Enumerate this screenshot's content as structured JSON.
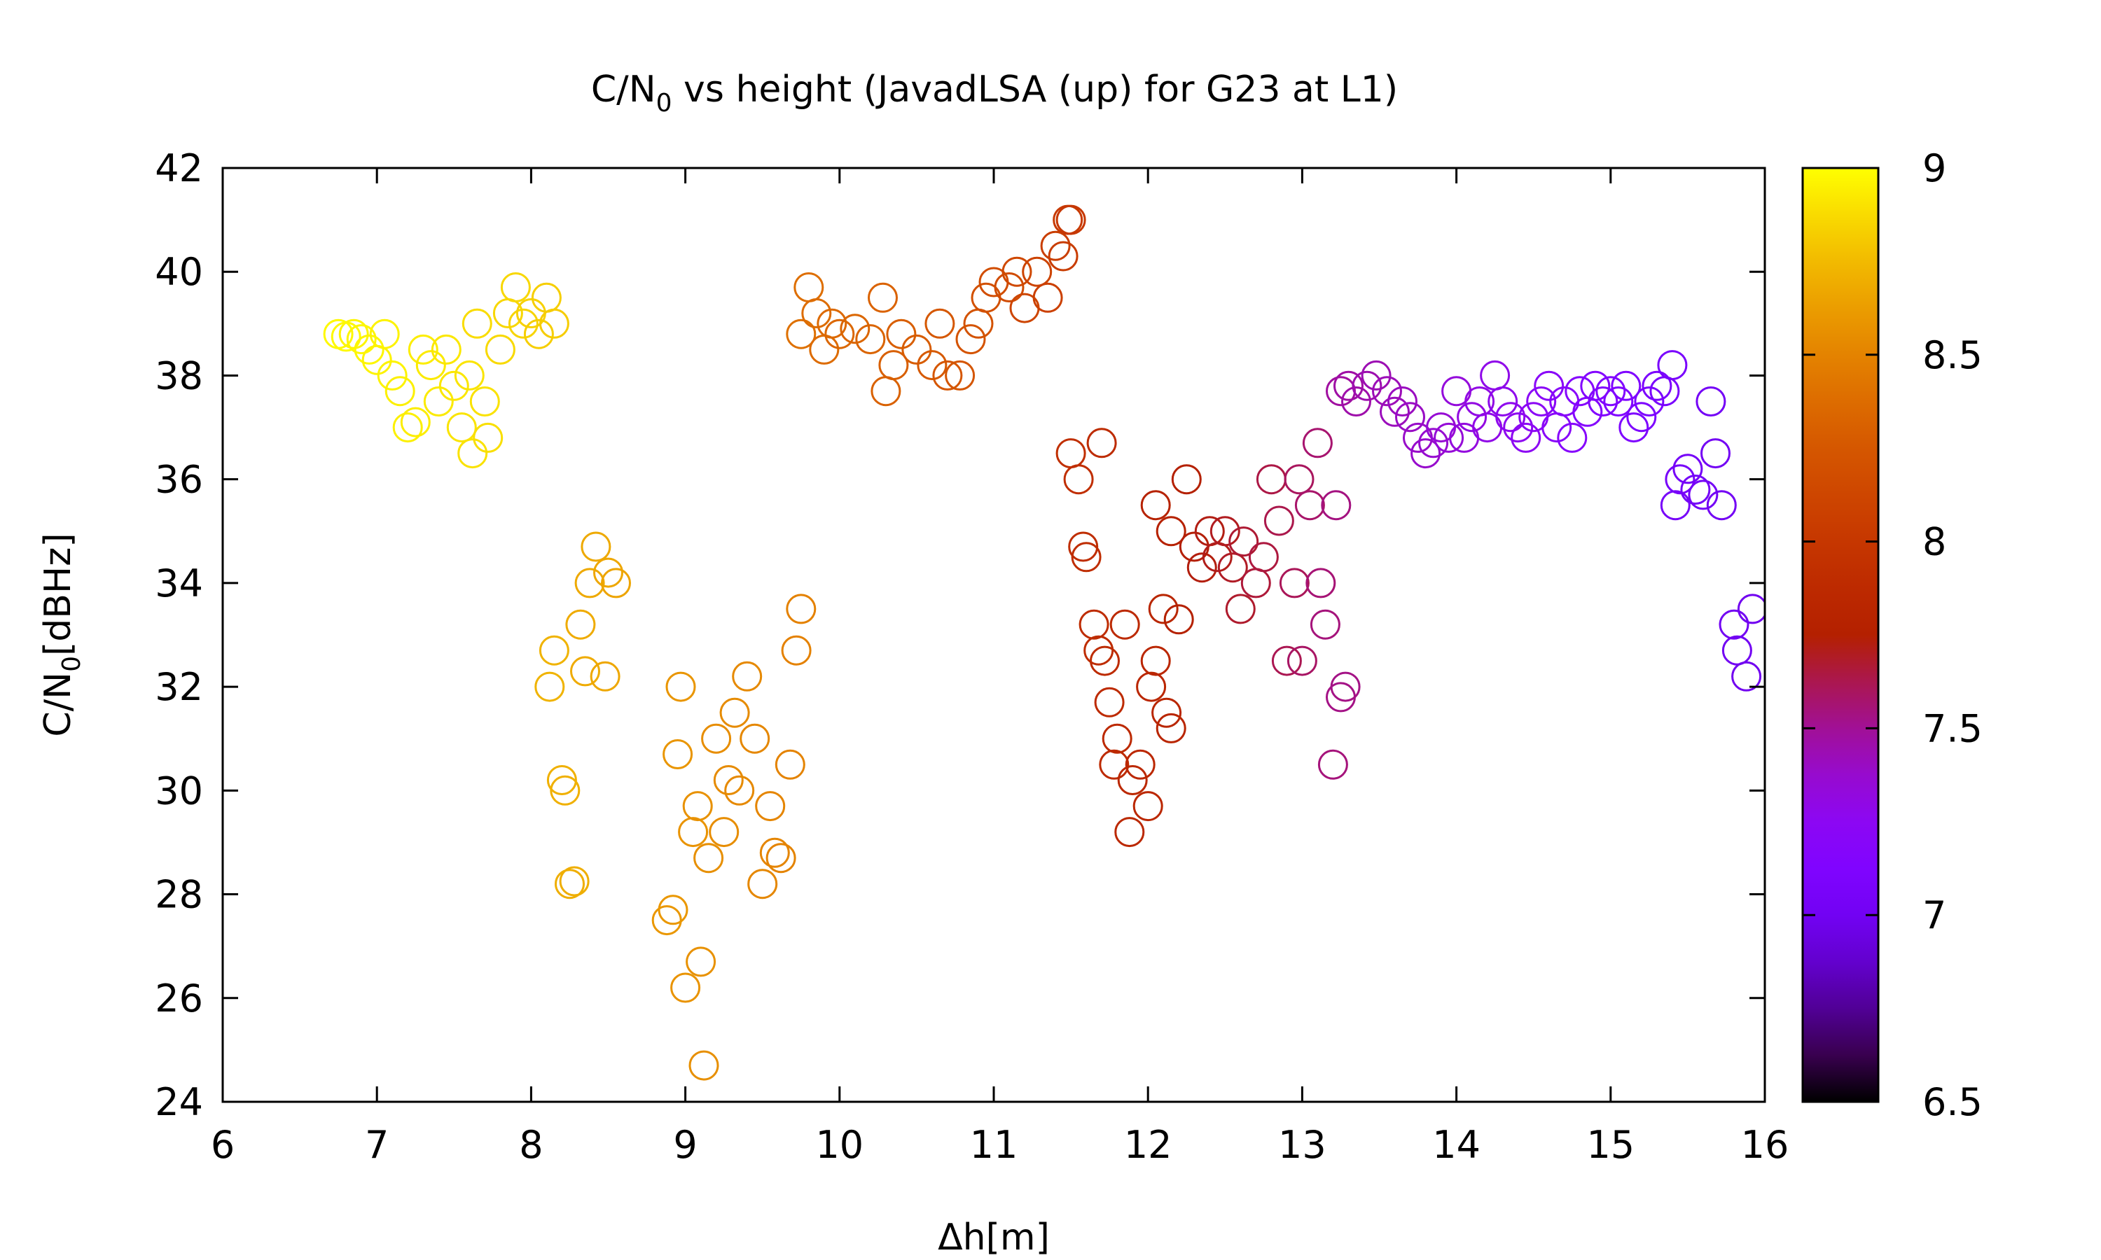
{
  "chart_data": {
    "type": "scatter",
    "title": {
      "prefix": "C/N",
      "sub": "0",
      "suffix": " vs height (JavadLSA (up) for G23 at L1)"
    },
    "xlabel": "Δh[m]",
    "ylabel": {
      "prefix": "C/N",
      "sub": "0",
      "suffix": "[dBHz]"
    },
    "xlim": [
      6,
      16
    ],
    "ylim": [
      24,
      42
    ],
    "xticks": [
      6,
      7,
      8,
      9,
      10,
      11,
      12,
      13,
      14,
      15,
      16
    ],
    "yticks": [
      24,
      26,
      28,
      30,
      32,
      34,
      36,
      38,
      40,
      42
    ],
    "colorbar": {
      "min": 6.5,
      "max": 9,
      "ticks": [
        6.5,
        7,
        7.5,
        8,
        8.5,
        9
      ],
      "tick_labels": [
        "6.5",
        "7",
        "7.5",
        "8",
        "8.5",
        "9"
      ],
      "palette": "black-purple-red-orange-yellow"
    },
    "marker": "open-circle",
    "grid": false,
    "points": [
      {
        "x": 6.75,
        "y": 38.8,
        "c": 8.98
      },
      {
        "x": 6.8,
        "y": 38.75,
        "c": 8.98
      },
      {
        "x": 6.85,
        "y": 38.8,
        "c": 8.97
      },
      {
        "x": 6.9,
        "y": 38.7,
        "c": 8.97
      },
      {
        "x": 6.95,
        "y": 38.5,
        "c": 8.97
      },
      {
        "x": 7.0,
        "y": 38.3,
        "c": 8.96
      },
      {
        "x": 7.05,
        "y": 38.8,
        "c": 8.96
      },
      {
        "x": 7.1,
        "y": 38.0,
        "c": 8.96
      },
      {
        "x": 7.15,
        "y": 37.7,
        "c": 8.95
      },
      {
        "x": 7.2,
        "y": 37.0,
        "c": 8.95
      },
      {
        "x": 7.25,
        "y": 37.1,
        "c": 8.94
      },
      {
        "x": 7.3,
        "y": 38.5,
        "c": 8.94
      },
      {
        "x": 7.35,
        "y": 38.2,
        "c": 8.93
      },
      {
        "x": 7.4,
        "y": 37.5,
        "c": 8.93
      },
      {
        "x": 7.45,
        "y": 38.5,
        "c": 8.92
      },
      {
        "x": 7.5,
        "y": 37.8,
        "c": 8.92
      },
      {
        "x": 7.55,
        "y": 37.0,
        "c": 8.91
      },
      {
        "x": 7.6,
        "y": 38.0,
        "c": 8.91
      },
      {
        "x": 7.62,
        "y": 36.5,
        "c": 8.9
      },
      {
        "x": 7.7,
        "y": 37.5,
        "c": 8.9
      },
      {
        "x": 7.72,
        "y": 36.8,
        "c": 8.89
      },
      {
        "x": 7.65,
        "y": 39.0,
        "c": 8.88
      },
      {
        "x": 7.8,
        "y": 38.5,
        "c": 8.87
      },
      {
        "x": 7.85,
        "y": 39.2,
        "c": 8.86
      },
      {
        "x": 7.9,
        "y": 39.7,
        "c": 8.86
      },
      {
        "x": 7.95,
        "y": 39.0,
        "c": 8.85
      },
      {
        "x": 8.0,
        "y": 39.2,
        "c": 8.84
      },
      {
        "x": 8.05,
        "y": 38.8,
        "c": 8.83
      },
      {
        "x": 8.1,
        "y": 39.5,
        "c": 8.83
      },
      {
        "x": 8.15,
        "y": 39.0,
        "c": 8.82
      },
      {
        "x": 8.12,
        "y": 32.0,
        "c": 8.72
      },
      {
        "x": 8.15,
        "y": 32.7,
        "c": 8.72
      },
      {
        "x": 8.2,
        "y": 30.2,
        "c": 8.71
      },
      {
        "x": 8.22,
        "y": 30.0,
        "c": 8.71
      },
      {
        "x": 8.25,
        "y": 28.2,
        "c": 8.7
      },
      {
        "x": 8.28,
        "y": 28.25,
        "c": 8.7
      },
      {
        "x": 8.32,
        "y": 33.2,
        "c": 8.69
      },
      {
        "x": 8.35,
        "y": 32.3,
        "c": 8.69
      },
      {
        "x": 8.38,
        "y": 34.0,
        "c": 8.68
      },
      {
        "x": 8.42,
        "y": 34.7,
        "c": 8.68
      },
      {
        "x": 8.48,
        "y": 32.2,
        "c": 8.67
      },
      {
        "x": 8.5,
        "y": 34.2,
        "c": 8.67
      },
      {
        "x": 8.55,
        "y": 34.0,
        "c": 8.66
      },
      {
        "x": 8.88,
        "y": 27.5,
        "c": 8.6
      },
      {
        "x": 8.92,
        "y": 27.7,
        "c": 8.6
      },
      {
        "x": 8.95,
        "y": 30.7,
        "c": 8.59
      },
      {
        "x": 8.97,
        "y": 32.0,
        "c": 8.59
      },
      {
        "x": 9.0,
        "y": 26.2,
        "c": 8.58
      },
      {
        "x": 9.05,
        "y": 29.2,
        "c": 8.58
      },
      {
        "x": 9.08,
        "y": 29.7,
        "c": 8.57
      },
      {
        "x": 9.1,
        "y": 26.7,
        "c": 8.57
      },
      {
        "x": 9.12,
        "y": 24.7,
        "c": 8.56
      },
      {
        "x": 9.15,
        "y": 28.7,
        "c": 8.56
      },
      {
        "x": 9.2,
        "y": 31.0,
        "c": 8.55
      },
      {
        "x": 9.25,
        "y": 29.2,
        "c": 8.55
      },
      {
        "x": 9.28,
        "y": 30.2,
        "c": 8.54
      },
      {
        "x": 9.32,
        "y": 31.5,
        "c": 8.54
      },
      {
        "x": 9.35,
        "y": 30.0,
        "c": 8.53
      },
      {
        "x": 9.4,
        "y": 32.2,
        "c": 8.53
      },
      {
        "x": 9.45,
        "y": 31.0,
        "c": 8.52
      },
      {
        "x": 9.5,
        "y": 28.2,
        "c": 8.52
      },
      {
        "x": 9.55,
        "y": 29.7,
        "c": 8.51
      },
      {
        "x": 9.58,
        "y": 28.8,
        "c": 8.51
      },
      {
        "x": 9.62,
        "y": 28.7,
        "c": 8.5
      },
      {
        "x": 9.68,
        "y": 30.5,
        "c": 8.5
      },
      {
        "x": 9.72,
        "y": 32.7,
        "c": 8.49
      },
      {
        "x": 9.75,
        "y": 33.5,
        "c": 8.49
      },
      {
        "x": 9.75,
        "y": 38.8,
        "c": 8.4
      },
      {
        "x": 9.8,
        "y": 39.7,
        "c": 8.39
      },
      {
        "x": 9.85,
        "y": 39.2,
        "c": 8.38
      },
      {
        "x": 9.9,
        "y": 38.5,
        "c": 8.37
      },
      {
        "x": 9.95,
        "y": 39.0,
        "c": 8.36
      },
      {
        "x": 10.0,
        "y": 38.8,
        "c": 8.35
      },
      {
        "x": 10.1,
        "y": 38.9,
        "c": 8.34
      },
      {
        "x": 10.2,
        "y": 38.7,
        "c": 8.33
      },
      {
        "x": 10.28,
        "y": 39.5,
        "c": 8.32
      },
      {
        "x": 10.3,
        "y": 37.7,
        "c": 8.31
      },
      {
        "x": 10.35,
        "y": 38.2,
        "c": 8.3
      },
      {
        "x": 10.4,
        "y": 38.8,
        "c": 8.29
      },
      {
        "x": 10.5,
        "y": 38.5,
        "c": 8.28
      },
      {
        "x": 10.6,
        "y": 38.2,
        "c": 8.26
      },
      {
        "x": 10.65,
        "y": 39.0,
        "c": 8.25
      },
      {
        "x": 10.7,
        "y": 38.0,
        "c": 8.24
      },
      {
        "x": 10.78,
        "y": 38.0,
        "c": 8.23
      },
      {
        "x": 10.85,
        "y": 38.7,
        "c": 8.22
      },
      {
        "x": 10.9,
        "y": 39.0,
        "c": 8.21
      },
      {
        "x": 10.95,
        "y": 39.5,
        "c": 8.2
      },
      {
        "x": 11.0,
        "y": 39.8,
        "c": 8.18
      },
      {
        "x": 11.1,
        "y": 39.7,
        "c": 8.16
      },
      {
        "x": 11.15,
        "y": 40.0,
        "c": 8.14
      },
      {
        "x": 11.2,
        "y": 39.3,
        "c": 8.12
      },
      {
        "x": 11.28,
        "y": 40.0,
        "c": 8.1
      },
      {
        "x": 11.35,
        "y": 39.5,
        "c": 8.08
      },
      {
        "x": 11.4,
        "y": 40.5,
        "c": 8.06
      },
      {
        "x": 11.45,
        "y": 40.3,
        "c": 8.04
      },
      {
        "x": 11.48,
        "y": 41.0,
        "c": 8.02
      },
      {
        "x": 11.5,
        "y": 41.0,
        "c": 8.0
      },
      {
        "x": 11.5,
        "y": 36.5,
        "c": 7.92
      },
      {
        "x": 11.55,
        "y": 36.0,
        "c": 7.91
      },
      {
        "x": 11.58,
        "y": 34.7,
        "c": 7.9
      },
      {
        "x": 11.6,
        "y": 34.5,
        "c": 7.9
      },
      {
        "x": 11.65,
        "y": 33.2,
        "c": 7.89
      },
      {
        "x": 11.68,
        "y": 32.7,
        "c": 7.89
      },
      {
        "x": 11.7,
        "y": 36.7,
        "c": 7.88
      },
      {
        "x": 11.72,
        "y": 32.5,
        "c": 7.88
      },
      {
        "x": 11.75,
        "y": 31.7,
        "c": 7.87
      },
      {
        "x": 11.78,
        "y": 30.5,
        "c": 7.87
      },
      {
        "x": 11.8,
        "y": 31.0,
        "c": 7.86
      },
      {
        "x": 11.85,
        "y": 33.2,
        "c": 7.86
      },
      {
        "x": 11.88,
        "y": 29.2,
        "c": 7.85
      },
      {
        "x": 11.9,
        "y": 30.2,
        "c": 7.85
      },
      {
        "x": 11.95,
        "y": 30.5,
        "c": 7.84
      },
      {
        "x": 12.0,
        "y": 29.7,
        "c": 7.84
      },
      {
        "x": 12.02,
        "y": 32.0,
        "c": 7.83
      },
      {
        "x": 12.05,
        "y": 32.5,
        "c": 7.83
      },
      {
        "x": 12.1,
        "y": 33.5,
        "c": 7.82
      },
      {
        "x": 12.12,
        "y": 31.5,
        "c": 7.82
      },
      {
        "x": 12.15,
        "y": 31.2,
        "c": 7.81
      },
      {
        "x": 12.05,
        "y": 35.5,
        "c": 7.78
      },
      {
        "x": 12.15,
        "y": 35.0,
        "c": 7.77
      },
      {
        "x": 12.2,
        "y": 33.3,
        "c": 7.76
      },
      {
        "x": 12.25,
        "y": 36.0,
        "c": 7.75
      },
      {
        "x": 12.3,
        "y": 34.7,
        "c": 7.74
      },
      {
        "x": 12.35,
        "y": 34.3,
        "c": 7.73
      },
      {
        "x": 12.4,
        "y": 35.0,
        "c": 7.72
      },
      {
        "x": 12.45,
        "y": 34.5,
        "c": 7.71
      },
      {
        "x": 12.5,
        "y": 35.0,
        "c": 7.7
      },
      {
        "x": 12.55,
        "y": 34.3,
        "c": 7.69
      },
      {
        "x": 12.6,
        "y": 33.5,
        "c": 7.68
      },
      {
        "x": 12.62,
        "y": 34.8,
        "c": 7.67
      },
      {
        "x": 12.7,
        "y": 34.0,
        "c": 7.66
      },
      {
        "x": 12.75,
        "y": 34.5,
        "c": 7.65
      },
      {
        "x": 12.8,
        "y": 36.0,
        "c": 7.64
      },
      {
        "x": 12.85,
        "y": 35.2,
        "c": 7.63
      },
      {
        "x": 12.9,
        "y": 32.5,
        "c": 7.62
      },
      {
        "x": 12.95,
        "y": 34.0,
        "c": 7.61
      },
      {
        "x": 12.98,
        "y": 36.0,
        "c": 7.6
      },
      {
        "x": 13.0,
        "y": 32.5,
        "c": 7.59
      },
      {
        "x": 13.05,
        "y": 35.5,
        "c": 7.58
      },
      {
        "x": 13.1,
        "y": 36.7,
        "c": 7.57
      },
      {
        "x": 13.12,
        "y": 34.0,
        "c": 7.56
      },
      {
        "x": 13.15,
        "y": 33.2,
        "c": 7.55
      },
      {
        "x": 13.2,
        "y": 30.5,
        "c": 7.55
      },
      {
        "x": 13.22,
        "y": 35.5,
        "c": 7.54
      },
      {
        "x": 13.25,
        "y": 31.8,
        "c": 7.53
      },
      {
        "x": 13.28,
        "y": 32.0,
        "c": 7.53
      },
      {
        "x": 13.25,
        "y": 37.7,
        "c": 7.48
      },
      {
        "x": 13.3,
        "y": 37.8,
        "c": 7.47
      },
      {
        "x": 13.35,
        "y": 37.5,
        "c": 7.46
      },
      {
        "x": 13.42,
        "y": 37.8,
        "c": 7.45
      },
      {
        "x": 13.48,
        "y": 38.0,
        "c": 7.44
      },
      {
        "x": 13.55,
        "y": 37.7,
        "c": 7.43
      },
      {
        "x": 13.6,
        "y": 37.3,
        "c": 7.42
      },
      {
        "x": 13.65,
        "y": 37.5,
        "c": 7.41
      },
      {
        "x": 13.7,
        "y": 37.2,
        "c": 7.4
      },
      {
        "x": 13.75,
        "y": 36.8,
        "c": 7.39
      },
      {
        "x": 13.8,
        "y": 36.5,
        "c": 7.38
      },
      {
        "x": 13.85,
        "y": 36.7,
        "c": 7.37
      },
      {
        "x": 13.9,
        "y": 37.0,
        "c": 7.36
      },
      {
        "x": 13.95,
        "y": 36.8,
        "c": 7.35
      },
      {
        "x": 14.0,
        "y": 37.7,
        "c": 7.34
      },
      {
        "x": 14.05,
        "y": 36.8,
        "c": 7.33
      },
      {
        "x": 14.1,
        "y": 37.2,
        "c": 7.32
      },
      {
        "x": 14.15,
        "y": 37.5,
        "c": 7.31
      },
      {
        "x": 14.2,
        "y": 37.0,
        "c": 7.3
      },
      {
        "x": 14.25,
        "y": 38.0,
        "c": 7.29
      },
      {
        "x": 14.3,
        "y": 37.5,
        "c": 7.28
      },
      {
        "x": 14.35,
        "y": 37.2,
        "c": 7.27
      },
      {
        "x": 14.4,
        "y": 37.0,
        "c": 7.26
      },
      {
        "x": 14.45,
        "y": 36.8,
        "c": 7.25
      },
      {
        "x": 14.5,
        "y": 37.2,
        "c": 7.24
      },
      {
        "x": 14.55,
        "y": 37.5,
        "c": 7.23
      },
      {
        "x": 14.6,
        "y": 37.8,
        "c": 7.22
      },
      {
        "x": 14.65,
        "y": 37.0,
        "c": 7.21
      },
      {
        "x": 14.7,
        "y": 37.5,
        "c": 7.2
      },
      {
        "x": 14.75,
        "y": 36.8,
        "c": 7.19
      },
      {
        "x": 14.8,
        "y": 37.7,
        "c": 7.18
      },
      {
        "x": 14.85,
        "y": 37.3,
        "c": 7.17
      },
      {
        "x": 14.9,
        "y": 37.8,
        "c": 7.16
      },
      {
        "x": 14.95,
        "y": 37.5,
        "c": 7.15
      },
      {
        "x": 15.0,
        "y": 37.7,
        "c": 7.14
      },
      {
        "x": 15.05,
        "y": 37.5,
        "c": 7.13
      },
      {
        "x": 15.1,
        "y": 37.8,
        "c": 7.12
      },
      {
        "x": 15.15,
        "y": 37.0,
        "c": 7.11
      },
      {
        "x": 15.2,
        "y": 37.2,
        "c": 7.1
      },
      {
        "x": 15.25,
        "y": 37.5,
        "c": 7.09
      },
      {
        "x": 15.3,
        "y": 37.8,
        "c": 7.08
      },
      {
        "x": 15.35,
        "y": 37.7,
        "c": 7.07
      },
      {
        "x": 15.4,
        "y": 38.2,
        "c": 7.06
      },
      {
        "x": 15.42,
        "y": 35.5,
        "c": 7.04
      },
      {
        "x": 15.45,
        "y": 36.0,
        "c": 7.04
      },
      {
        "x": 15.5,
        "y": 36.2,
        "c": 7.03
      },
      {
        "x": 15.55,
        "y": 35.8,
        "c": 7.03
      },
      {
        "x": 15.6,
        "y": 35.7,
        "c": 7.02
      },
      {
        "x": 15.65,
        "y": 37.5,
        "c": 7.02
      },
      {
        "x": 15.68,
        "y": 36.5,
        "c": 7.01
      },
      {
        "x": 15.72,
        "y": 35.5,
        "c": 7.01
      },
      {
        "x": 15.8,
        "y": 33.2,
        "c": 7.0
      },
      {
        "x": 15.82,
        "y": 32.7,
        "c": 7.0
      },
      {
        "x": 15.88,
        "y": 32.2,
        "c": 6.99
      },
      {
        "x": 15.92,
        "y": 33.5,
        "c": 6.99
      }
    ]
  }
}
